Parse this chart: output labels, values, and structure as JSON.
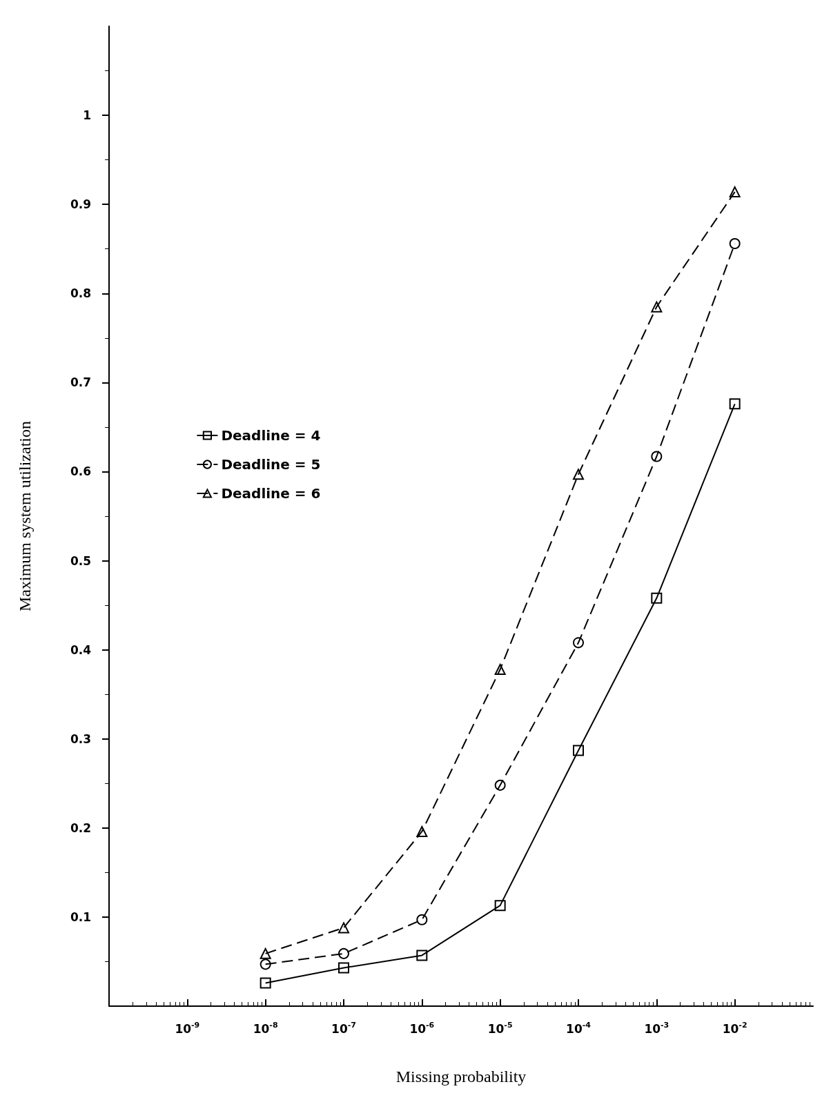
{
  "chart_data": {
    "type": "line",
    "xlabel": "Missing probability",
    "ylabel": "Maximum system utilization",
    "x": [
      1e-08,
      1e-07,
      1e-06,
      1e-05,
      0.0001,
      0.001,
      0.01
    ],
    "log": "x",
    "xlim": [
      1e-10,
      0.1
    ],
    "xticks": [
      {
        "value": 1e-09,
        "label": "10$^{-9}$"
      },
      {
        "value": 1e-08,
        "label": "10$^{-8}$"
      },
      {
        "value": 1e-07,
        "label": "10$^{-7}$"
      },
      {
        "value": 1e-06,
        "label": "10$^{-6}$"
      },
      {
        "value": 1e-05,
        "label": "10$^{-5}$"
      },
      {
        "value": 0.0001,
        "label": "10$^{-4}$"
      },
      {
        "value": 0.001,
        "label": "10$^{-3}$"
      },
      {
        "value": 0.01,
        "label": "10$^{-2}$"
      }
    ],
    "ylim": [
      0,
      1.1
    ],
    "yticks": [
      0.1,
      0.2,
      0.3,
      0.4,
      0.5,
      0.6,
      0.7,
      0.8,
      0.9,
      1
    ],
    "grid": false,
    "legend": "left",
    "series": [
      {
        "name": "Deadline = 4",
        "color": "#000000",
        "marker": "square",
        "line_style": "solid",
        "values": [
          0.026,
          0.043,
          0.057,
          0.113,
          0.287,
          0.458,
          0.676
        ]
      },
      {
        "name": "Deadline = 5",
        "color": "#000000",
        "marker": "circle",
        "line_style": "dashed",
        "values": [
          0.047,
          0.059,
          0.097,
          0.248,
          0.408,
          0.617,
          0.856
        ]
      },
      {
        "name": "Deadline = 6",
        "color": "#000000",
        "marker": "triangle",
        "line_style": "dashed",
        "values": [
          0.059,
          0.088,
          0.196,
          0.378,
          0.597,
          0.785,
          0.914
        ]
      }
    ]
  }
}
